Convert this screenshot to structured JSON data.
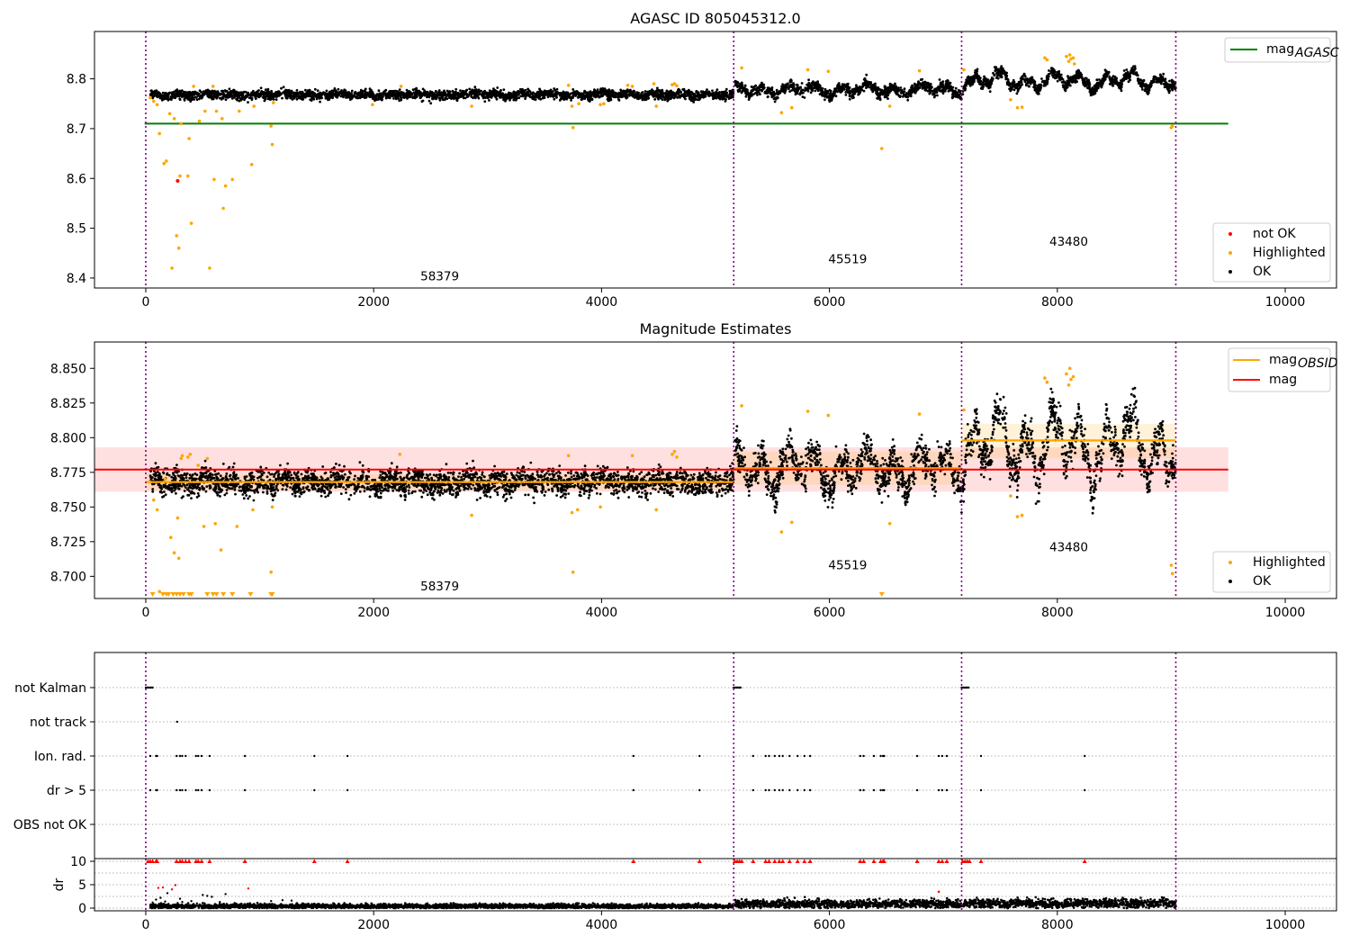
{
  "chart_data": [
    {
      "type": "scatter",
      "title": "AGASC ID 805045312.0",
      "xlim": [
        -450,
        10450
      ],
      "ylim": [
        8.38,
        8.895
      ],
      "xticks": [
        0,
        2000,
        4000,
        6000,
        8000,
        10000
      ],
      "yticks": [
        8.4,
        8.5,
        8.6,
        8.7,
        8.8
      ],
      "ytick_labels": [
        "8.4",
        "8.5",
        "8.6",
        "8.7",
        "8.8"
      ],
      "obsid_boundaries": [
        0,
        5160,
        7160,
        9040
      ],
      "obsid_labels": [
        {
          "text": "58379",
          "x": 2580,
          "y": 8.395
        },
        {
          "text": "45519",
          "x": 6160,
          "y": 8.43
        },
        {
          "text": "43480",
          "x": 8100,
          "y": 8.465
        }
      ],
      "lines": [
        {
          "name": "mag",
          "subscript": "AGASC",
          "color": "#008000",
          "x": [
            -10,
            9500
          ],
          "y": [
            8.71,
            8.71
          ]
        }
      ],
      "segments": [
        {
          "x0": 40,
          "x1": 5160,
          "center": 8.768,
          "spread": 0.009,
          "ripple": 0.002
        },
        {
          "x0": 5170,
          "x1": 7160,
          "center": 8.778,
          "spread": 0.011,
          "ripple": 0.008
        },
        {
          "x0": 7170,
          "x1": 9040,
          "center": 8.796,
          "spread": 0.01,
          "ripple": 0.012
        }
      ],
      "highlighted": [
        [
          40,
          8.762
        ],
        [
          70,
          8.755
        ],
        [
          100,
          8.748
        ],
        [
          120,
          8.69
        ],
        [
          160,
          8.63
        ],
        [
          180,
          8.635
        ],
        [
          210,
          8.73
        ],
        [
          230,
          8.42
        ],
        [
          250,
          8.72
        ],
        [
          270,
          8.485
        ],
        [
          290,
          8.46
        ],
        [
          300,
          8.605
        ],
        [
          310,
          8.71
        ],
        [
          370,
          8.605
        ],
        [
          380,
          8.68
        ],
        [
          400,
          8.51
        ],
        [
          420,
          8.785
        ],
        [
          470,
          8.715
        ],
        [
          520,
          8.735
        ],
        [
          560,
          8.42
        ],
        [
          590,
          8.785
        ],
        [
          600,
          8.598
        ],
        [
          620,
          8.735
        ],
        [
          670,
          8.72
        ],
        [
          680,
          8.54
        ],
        [
          700,
          8.585
        ],
        [
          760,
          8.598
        ],
        [
          820,
          8.735
        ],
        [
          930,
          8.628
        ],
        [
          950,
          8.745
        ],
        [
          1100,
          8.705
        ],
        [
          1110,
          8.668
        ],
        [
          1120,
          8.752
        ],
        [
          1990,
          8.748
        ],
        [
          2240,
          8.785
        ],
        [
          2860,
          8.745
        ],
        [
          3710,
          8.787
        ],
        [
          3740,
          8.745
        ],
        [
          3750,
          8.702
        ],
        [
          3800,
          8.75
        ],
        [
          3990,
          8.748
        ],
        [
          4020,
          8.75
        ],
        [
          4230,
          8.787
        ],
        [
          4270,
          8.785
        ],
        [
          4460,
          8.79
        ],
        [
          4480,
          8.745
        ],
        [
          4620,
          8.788
        ],
        [
          4640,
          8.79
        ],
        [
          4660,
          8.786
        ],
        [
          5230,
          8.822
        ],
        [
          5580,
          8.732
        ],
        [
          5670,
          8.742
        ],
        [
          5810,
          8.818
        ],
        [
          5990,
          8.815
        ],
        [
          6460,
          8.66
        ],
        [
          6530,
          8.745
        ],
        [
          6790,
          8.816
        ],
        [
          7180,
          8.818
        ],
        [
          7590,
          8.758
        ],
        [
          7650,
          8.742
        ],
        [
          7690,
          8.743
        ],
        [
          7890,
          8.842
        ],
        [
          7910,
          8.838
        ],
        [
          8080,
          8.845
        ],
        [
          8100,
          8.835
        ],
        [
          8110,
          8.848
        ],
        [
          8120,
          8.84
        ],
        [
          8140,
          8.842
        ],
        [
          8150,
          8.83
        ],
        [
          9000,
          8.702
        ],
        [
          9010,
          8.705
        ]
      ],
      "not_ok": [
        [
          280,
          8.595
        ]
      ],
      "legend_top": [
        {
          "label": "mag",
          "subscript": "AGASC",
          "color": "#008000"
        }
      ],
      "legend_bottom": [
        {
          "label": "not OK",
          "color": "#ff0000"
        },
        {
          "label": "Highlighted",
          "color": "#ffa500"
        },
        {
          "label": "OK",
          "color": "#000000"
        }
      ]
    },
    {
      "type": "scatter",
      "title": "Magnitude Estimates",
      "xlim": [
        -450,
        10450
      ],
      "ylim": [
        8.684,
        8.869
      ],
      "xticks": [
        0,
        2000,
        4000,
        6000,
        8000,
        10000
      ],
      "yticks": [
        8.7,
        8.725,
        8.75,
        8.775,
        8.8,
        8.825,
        8.85
      ],
      "ytick_labels": [
        "8.700",
        "8.725",
        "8.750",
        "8.775",
        "8.800",
        "8.825",
        "8.850"
      ],
      "obsid_boundaries": [
        0,
        5160,
        7160,
        9040
      ],
      "obsid_labels": [
        {
          "text": "58379",
          "x": 2580,
          "y": 8.69
        },
        {
          "text": "45519",
          "x": 6160,
          "y": 8.705
        },
        {
          "text": "43480",
          "x": 8100,
          "y": 8.718
        }
      ],
      "mag_band": {
        "x": [
          -450,
          9500
        ],
        "y": [
          8.761,
          8.793
        ],
        "color": "#ff0000"
      },
      "mag_line": {
        "name": "mag",
        "color": "#ff0000",
        "y": 8.777,
        "x": [
          -450,
          9500
        ]
      },
      "obsid_mags": [
        {
          "x0": 0,
          "x1": 5160,
          "y": 8.768,
          "band": [
            8.762,
            8.774
          ]
        },
        {
          "x0": 5160,
          "x1": 7160,
          "y": 8.778,
          "band": [
            8.766,
            8.79
          ]
        },
        {
          "x0": 7160,
          "x1": 9040,
          "y": 8.798,
          "band": [
            8.785,
            8.81
          ]
        }
      ],
      "segments": [
        {
          "x0": 40,
          "x1": 5160,
          "center": 8.768,
          "spread": 0.009,
          "ripple": 0.002
        },
        {
          "x0": 5170,
          "x1": 7160,
          "center": 8.778,
          "spread": 0.012,
          "ripple": 0.01
        },
        {
          "x0": 7170,
          "x1": 9040,
          "center": 8.794,
          "spread": 0.013,
          "ripple": 0.018
        }
      ],
      "highlighted": [
        [
          40,
          8.768
        ],
        [
          70,
          8.755
        ],
        [
          100,
          8.748
        ],
        [
          120,
          8.689
        ],
        [
          170,
          8.77
        ],
        [
          220,
          8.728
        ],
        [
          250,
          8.717
        ],
        [
          280,
          8.742
        ],
        [
          290,
          8.713
        ],
        [
          310,
          8.785
        ],
        [
          320,
          8.787
        ],
        [
          370,
          8.786
        ],
        [
          390,
          8.788
        ],
        [
          460,
          8.78
        ],
        [
          510,
          8.736
        ],
        [
          540,
          8.785
        ],
        [
          610,
          8.738
        ],
        [
          660,
          8.719
        ],
        [
          800,
          8.736
        ],
        [
          940,
          8.748
        ],
        [
          1100,
          8.703
        ],
        [
          1110,
          8.75
        ],
        [
          2230,
          8.788
        ],
        [
          2860,
          8.744
        ],
        [
          3710,
          8.787
        ],
        [
          3740,
          8.746
        ],
        [
          3750,
          8.703
        ],
        [
          3790,
          8.748
        ],
        [
          3990,
          8.75
        ],
        [
          4270,
          8.787
        ],
        [
          4480,
          8.748
        ],
        [
          4620,
          8.788
        ],
        [
          4640,
          8.79
        ],
        [
          4660,
          8.786
        ],
        [
          5230,
          8.823
        ],
        [
          5580,
          8.732
        ],
        [
          5670,
          8.739
        ],
        [
          5810,
          8.819
        ],
        [
          5990,
          8.816
        ],
        [
          6530,
          8.738
        ],
        [
          6790,
          8.817
        ],
        [
          7180,
          8.82
        ],
        [
          7590,
          8.758
        ],
        [
          7650,
          8.743
        ],
        [
          7690,
          8.744
        ],
        [
          7890,
          8.843
        ],
        [
          7910,
          8.84
        ],
        [
          8080,
          8.846
        ],
        [
          8100,
          8.838
        ],
        [
          8110,
          8.85
        ],
        [
          8120,
          8.842
        ],
        [
          8140,
          8.844
        ],
        [
          9000,
          8.708
        ],
        [
          9010,
          8.702
        ]
      ],
      "below_markers": [
        60,
        150,
        180,
        200,
        240,
        270,
        300,
        330,
        380,
        400,
        540,
        590,
        620,
        680,
        760,
        920,
        1100,
        1110,
        6460
      ],
      "legend_top": [
        {
          "label": "mag",
          "subscript": "OBSID",
          "color": "#ffa500"
        },
        {
          "label": "mag",
          "subscript": "",
          "color": "#ff0000"
        }
      ],
      "legend_bottom": [
        {
          "label": "Highlighted",
          "color": "#ffa500"
        },
        {
          "label": "OK",
          "color": "#000000"
        }
      ]
    },
    {
      "type": "scatter",
      "xlim": [
        -450,
        10450
      ],
      "categories": [
        "not Kalman",
        "not track",
        "Ion. rad.",
        "dr > 5",
        "OBS not OK"
      ],
      "obsid_boundaries": [
        0,
        5160,
        7160,
        9040
      ],
      "flags": {
        "not Kalman": [
          [
            0,
            60
          ],
          [
            5160,
            5230
          ],
          [
            7160,
            7230
          ]
        ],
        "not track": [
          [
            275,
            275
          ]
        ],
        "Ion. rad.": [
          40,
          90,
          100,
          270,
          300,
          320,
          350,
          440,
          460,
          490,
          560,
          870,
          1480,
          1770,
          4280,
          4860,
          5330,
          5440,
          5470,
          5520,
          5560,
          5590,
          5650,
          5720,
          5780,
          5830,
          6270,
          6300,
          6390,
          6450,
          6470,
          6480,
          6770,
          6960,
          6990,
          7030,
          7330,
          8240
        ],
        "dr > 5": [
          40,
          90,
          100,
          270,
          300,
          320,
          350,
          440,
          460,
          490,
          560,
          870,
          1480,
          1770,
          4280,
          4860,
          5330,
          5440,
          5470,
          5520,
          5560,
          5590,
          5650,
          5720,
          5780,
          5830,
          6270,
          6300,
          6390,
          6450,
          6470,
          6480,
          6770,
          6960,
          6990,
          7030,
          7330,
          8240
        ],
        "OBS not OK": []
      }
    },
    {
      "type": "scatter",
      "xlim": [
        -450,
        10450
      ],
      "ylim": [
        -0.5,
        10.5
      ],
      "ylabel": "dr",
      "xticks": [
        0,
        2000,
        4000,
        6000,
        8000,
        10000
      ],
      "yticks": [
        0,
        5,
        10
      ],
      "obsid_boundaries": [
        0,
        5160,
        7160,
        9040
      ],
      "segments": [
        {
          "x0": 40,
          "x1": 5160,
          "center": 0.4,
          "spread": 0.25
        },
        {
          "x0": 5170,
          "x1": 7160,
          "center": 0.9,
          "spread": 0.45
        },
        {
          "x0": 7170,
          "x1": 9040,
          "center": 1.0,
          "spread": 0.5
        }
      ],
      "early_scatter": [
        [
          60,
          1.2
        ],
        [
          90,
          1.8
        ],
        [
          110,
          4.3
        ],
        [
          130,
          2.2
        ],
        [
          150,
          4.4
        ],
        [
          170,
          1.4
        ],
        [
          190,
          3.2
        ],
        [
          200,
          0.9
        ],
        [
          230,
          4.0
        ],
        [
          260,
          4.9
        ],
        [
          280,
          1.1
        ],
        [
          300,
          2.0
        ],
        [
          320,
          1.3
        ],
        [
          360,
          0.8
        ],
        [
          400,
          1.5
        ],
        [
          450,
          1.0
        ],
        [
          500,
          2.8
        ],
        [
          540,
          2.6
        ],
        [
          580,
          2.4
        ],
        [
          650,
          1.3
        ],
        [
          700,
          3.0
        ],
        [
          780,
          1.1
        ],
        [
          900,
          4.2
        ],
        [
          950,
          0.9
        ],
        [
          1100,
          1.5
        ],
        [
          1200,
          1.7
        ],
        [
          1280,
          1.6
        ]
      ],
      "capped": [
        20,
        40,
        60,
        90,
        100,
        270,
        300,
        320,
        350,
        380,
        440,
        460,
        490,
        560,
        870,
        1480,
        1770,
        4280,
        4860,
        5170,
        5190,
        5210,
        5230,
        5330,
        5440,
        5470,
        5520,
        5560,
        5590,
        5650,
        5720,
        5780,
        5830,
        6270,
        6300,
        6390,
        6450,
        6470,
        6480,
        6770,
        6960,
        6990,
        7030,
        7170,
        7190,
        7210,
        7230,
        7330,
        8240
      ],
      "red_scatter": [
        [
          6960,
          3.5
        ]
      ]
    }
  ]
}
